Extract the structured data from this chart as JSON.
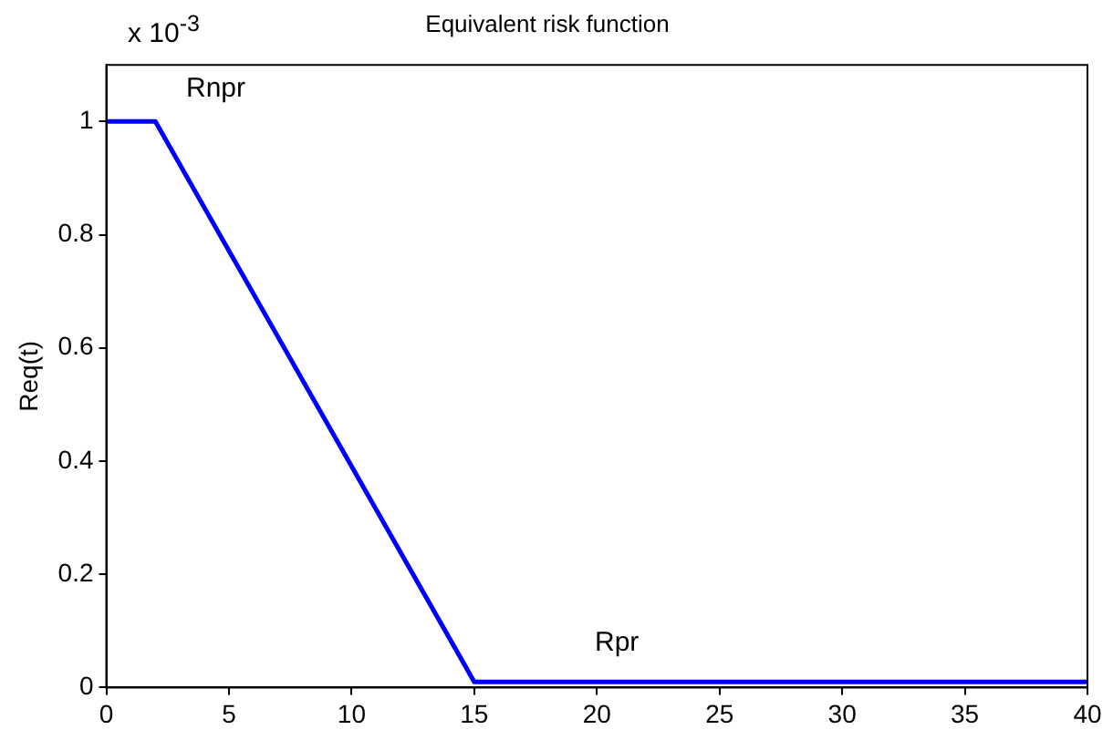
{
  "chart_data": {
    "type": "line",
    "title": "Equivalent risk function",
    "ylabel": "Req(t)",
    "x": [
      0,
      2,
      15,
      40
    ],
    "series": [
      {
        "color": "#0000ff",
        "values": [
          1,
          1,
          0.01,
          0.01
        ]
      }
    ],
    "xlim": [
      0,
      40
    ],
    "xticks": [
      0,
      5,
      10,
      15,
      20,
      25,
      30,
      35,
      40
    ],
    "ylim": [
      0,
      1.1
    ],
    "yticks": [
      0,
      0.2,
      0.4,
      0.6,
      0.8,
      1
    ],
    "grid": false,
    "legend": false,
    "marker": "none",
    "line_style": "solid",
    "annotations": [
      "x 10$^{-3}$",
      "Rnpr",
      "Rpr"
    ]
  }
}
